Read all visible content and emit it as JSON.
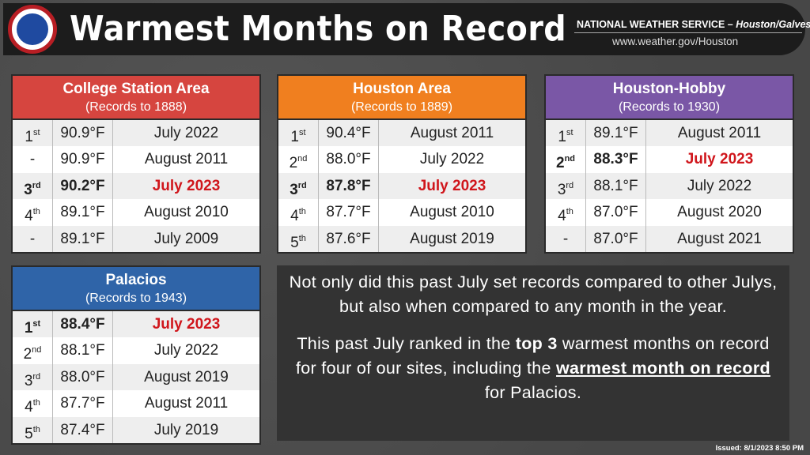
{
  "header": {
    "title": "Warmest Months on Record",
    "logo_text": "NATIONAL WEATHER SERVICE",
    "org": "NATIONAL WEATHER SERVICE – ",
    "org_office": "Houston/Galveston, TX",
    "url": "www.weather.gov/Houston"
  },
  "colors": {
    "college_station": "#d6453f",
    "houston": "#f07f1f",
    "hobby": "#7a57a6",
    "palacios": "#2f64a8",
    "highlight_red": "#d0161c"
  },
  "tables": {
    "college_station": {
      "name": "College Station Area",
      "sub": "(Records to 1888)",
      "rows": [
        {
          "rank": "1",
          "sup": "st",
          "temp": "90.9°F",
          "month": "July 2022",
          "hl": false
        },
        {
          "rank": "-",
          "sup": "",
          "temp": "90.9°F",
          "month": "August 2011",
          "hl": false
        },
        {
          "rank": "3",
          "sup": "rd",
          "temp": "90.2°F",
          "month": "July 2023",
          "hl": true
        },
        {
          "rank": "4",
          "sup": "th",
          "temp": "89.1°F",
          "month": "August 2010",
          "hl": false
        },
        {
          "rank": "-",
          "sup": "",
          "temp": "89.1°F",
          "month": "July 2009",
          "hl": false
        }
      ]
    },
    "houston": {
      "name": "Houston Area",
      "sub": "(Records to 1889)",
      "rows": [
        {
          "rank": "1",
          "sup": "st",
          "temp": "90.4°F",
          "month": "August 2011",
          "hl": false
        },
        {
          "rank": "2",
          "sup": "nd",
          "temp": "88.0°F",
          "month": "July 2022",
          "hl": false
        },
        {
          "rank": "3",
          "sup": "rd",
          "temp": "87.8°F",
          "month": "July 2023",
          "hl": true
        },
        {
          "rank": "4",
          "sup": "th",
          "temp": "87.7°F",
          "month": "August 2010",
          "hl": false
        },
        {
          "rank": "5",
          "sup": "th",
          "temp": "87.6°F",
          "month": "August 2019",
          "hl": false
        }
      ]
    },
    "hobby": {
      "name": "Houston-Hobby",
      "sub": "(Records to 1930)",
      "rows": [
        {
          "rank": "1",
          "sup": "st",
          "temp": "89.1°F",
          "month": "August 2011",
          "hl": false
        },
        {
          "rank": "2",
          "sup": "nd",
          "temp": "88.3°F",
          "month": "July 2023",
          "hl": true
        },
        {
          "rank": "3",
          "sup": "rd",
          "temp": "88.1°F",
          "month": "July 2022",
          "hl": false
        },
        {
          "rank": "4",
          "sup": "th",
          "temp": "87.0°F",
          "month": "August 2020",
          "hl": false
        },
        {
          "rank": "-",
          "sup": "",
          "temp": "87.0°F",
          "month": "August 2021",
          "hl": false
        }
      ]
    },
    "palacios": {
      "name": "Palacios",
      "sub": "(Records to 1943)",
      "rows": [
        {
          "rank": "1",
          "sup": "st",
          "temp": "88.4°F",
          "month": "July 2023",
          "hl": true
        },
        {
          "rank": "2",
          "sup": "nd",
          "temp": "88.1°F",
          "month": "July 2022",
          "hl": false
        },
        {
          "rank": "3",
          "sup": "rd",
          "temp": "88.0°F",
          "month": "August 2019",
          "hl": false
        },
        {
          "rank": "4",
          "sup": "th",
          "temp": "87.7°F",
          "month": "August 2011",
          "hl": false
        },
        {
          "rank": "5",
          "sup": "th",
          "temp": "87.4°F",
          "month": "July 2019",
          "hl": false
        }
      ]
    }
  },
  "note": {
    "para1": "Not only did this past July set records compared to other Julys, but also when compared to any month in the year.",
    "para2_a": "This past July ranked in the ",
    "para2_b": "top 3",
    "para2_c": " warmest months on record for four of our sites, including the ",
    "para2_d": "warmest month on record",
    "para2_e": " for Palacios."
  },
  "issued": "Issued: 8/1/2023 8:50 PM"
}
